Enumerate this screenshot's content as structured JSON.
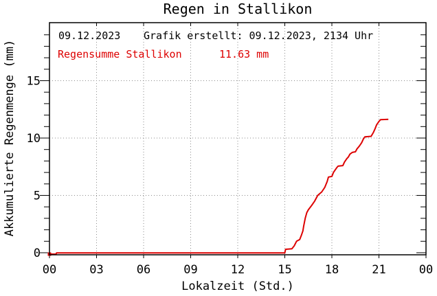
{
  "title": "Regen in Stallikon",
  "annotations": {
    "date": "09.12.2023",
    "created": "Grafik erstellt: 09.12.2023, 2134 Uhr",
    "sum_label": "Regensumme Stallikon",
    "sum_value": "11.63 mm"
  },
  "x_axis_label": "Lokalzeit (Std.)",
  "y_axis_label": "Akkumulierte Regenmenge (mm)",
  "colors": {
    "line": "#dd0000",
    "annotation_red": "#dd0000",
    "grid": "#8a8a8a",
    "axis": "#000000",
    "background": "#ffffff"
  },
  "chart_data": {
    "type": "line",
    "title": "Regen in Stallikon",
    "xlabel": "Lokalzeit (Std.)",
    "ylabel": "Akkumulierte Regenmenge (mm)",
    "xlim": [
      0,
      24
    ],
    "ylim": [
      -0.2,
      20.2
    ],
    "grid": "dotted",
    "legend_position": "none",
    "x_ticks": [
      {
        "v": 0,
        "label": "00"
      },
      {
        "v": 3,
        "label": "03"
      },
      {
        "v": 6,
        "label": "06"
      },
      {
        "v": 9,
        "label": "09"
      },
      {
        "v": 12,
        "label": "12"
      },
      {
        "v": 15,
        "label": "15"
      },
      {
        "v": 18,
        "label": "18"
      },
      {
        "v": 21,
        "label": "21"
      },
      {
        "v": 24,
        "label": "00"
      }
    ],
    "y_ticks": [
      {
        "v": 0,
        "label": "0"
      },
      {
        "v": 5,
        "label": "5"
      },
      {
        "v": 10,
        "label": "10"
      },
      {
        "v": 15,
        "label": "15"
      }
    ],
    "y_minor_ticks": [
      1,
      2,
      3,
      4,
      6,
      7,
      8,
      9,
      11,
      12,
      13,
      14,
      16,
      17,
      18,
      19
    ],
    "x_gridlines": [
      3,
      6,
      9,
      12,
      15,
      18,
      21
    ],
    "y_gridlines": [
      5,
      10,
      15
    ],
    "series": [
      {
        "name": "Regensumme Stallikon",
        "total_mm": 11.63,
        "color": "#dd0000",
        "start_marker": "square",
        "points": [
          [
            0.0,
            -0.12
          ],
          [
            0.42,
            -0.12
          ],
          [
            0.45,
            -0.02
          ],
          [
            15.0,
            -0.02
          ],
          [
            15.05,
            0.3
          ],
          [
            15.45,
            0.35
          ],
          [
            15.6,
            0.6
          ],
          [
            15.75,
            1.0
          ],
          [
            15.95,
            1.15
          ],
          [
            16.05,
            1.5
          ],
          [
            16.15,
            1.9
          ],
          [
            16.2,
            2.3
          ],
          [
            16.3,
            3.0
          ],
          [
            16.4,
            3.5
          ],
          [
            16.5,
            3.75
          ],
          [
            16.7,
            4.1
          ],
          [
            16.9,
            4.5
          ],
          [
            17.1,
            5.0
          ],
          [
            17.35,
            5.3
          ],
          [
            17.55,
            5.7
          ],
          [
            17.7,
            6.2
          ],
          [
            17.78,
            6.6
          ],
          [
            18.0,
            6.65
          ],
          [
            18.1,
            7.0
          ],
          [
            18.3,
            7.4
          ],
          [
            18.4,
            7.55
          ],
          [
            18.7,
            7.6
          ],
          [
            18.8,
            7.9
          ],
          [
            18.95,
            8.2
          ],
          [
            19.05,
            8.35
          ],
          [
            19.15,
            8.6
          ],
          [
            19.3,
            8.75
          ],
          [
            19.5,
            8.8
          ],
          [
            19.6,
            9.05
          ],
          [
            19.75,
            9.3
          ],
          [
            19.9,
            9.6
          ],
          [
            20.0,
            9.9
          ],
          [
            20.1,
            10.1
          ],
          [
            20.5,
            10.15
          ],
          [
            20.65,
            10.5
          ],
          [
            20.75,
            10.8
          ],
          [
            20.85,
            11.15
          ],
          [
            21.0,
            11.45
          ],
          [
            21.1,
            11.6
          ],
          [
            21.6,
            11.63
          ]
        ]
      }
    ]
  }
}
